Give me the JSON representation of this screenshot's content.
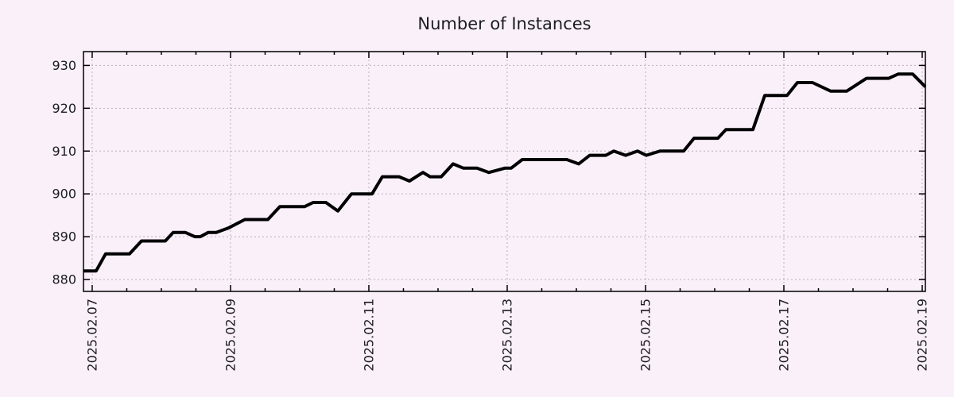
{
  "colors": {
    "background": "#faf0fa",
    "line": "#000000",
    "grid": "#b8b0bb",
    "text": "#1c1c24",
    "border": "#000000"
  },
  "chart_data": {
    "type": "line",
    "title": "Number of Instances",
    "xlabel": "",
    "ylabel": "",
    "grid": true,
    "legend": "none",
    "x_tick_labels": [
      "2025.02.07",
      "2025.02.09",
      "2025.02.11",
      "2025.02.13",
      "2025.02.15",
      "2025.02.17",
      "2025.02.19"
    ],
    "x_tick_days": [
      0,
      2,
      4,
      6,
      8,
      10,
      12
    ],
    "minor_tick_step_days": 0.5,
    "y_ticks": [
      880,
      890,
      900,
      910,
      920,
      930
    ],
    "xlim": [
      -0.126,
      12.046
    ],
    "ylim": [
      877.22,
      933.23
    ],
    "series": [
      {
        "name": "instances",
        "color": "#000000",
        "line_width": 4,
        "points": [
          [
            -0.126,
            882
          ],
          [
            0.057,
            882
          ],
          [
            0.195,
            886
          ],
          [
            0.54,
            886
          ],
          [
            0.713,
            889
          ],
          [
            1.057,
            889
          ],
          [
            1.172,
            891
          ],
          [
            1.345,
            891
          ],
          [
            1.483,
            890
          ],
          [
            1.563,
            890
          ],
          [
            1.678,
            891
          ],
          [
            1.793,
            891
          ],
          [
            1.966,
            892
          ],
          [
            2.207,
            894
          ],
          [
            2.54,
            894
          ],
          [
            2.713,
            897
          ],
          [
            3.069,
            897
          ],
          [
            3.195,
            898
          ],
          [
            3.379,
            898
          ],
          [
            3.552,
            896
          ],
          [
            3.747,
            900
          ],
          [
            4.046,
            900
          ],
          [
            4.195,
            904
          ],
          [
            4.437,
            904
          ],
          [
            4.586,
            903
          ],
          [
            4.782,
            905
          ],
          [
            4.885,
            904
          ],
          [
            5.046,
            904
          ],
          [
            5.218,
            907
          ],
          [
            5.368,
            906
          ],
          [
            5.563,
            906
          ],
          [
            5.736,
            905
          ],
          [
            5.966,
            906
          ],
          [
            6.057,
            906
          ],
          [
            6.218,
            908
          ],
          [
            6.862,
            908
          ],
          [
            7.034,
            907
          ],
          [
            7.195,
            909
          ],
          [
            7.425,
            909
          ],
          [
            7.54,
            910
          ],
          [
            7.713,
            909
          ],
          [
            7.885,
            910
          ],
          [
            8.011,
            909
          ],
          [
            8.207,
            910
          ],
          [
            8.552,
            910
          ],
          [
            8.701,
            913
          ],
          [
            9.046,
            913
          ],
          [
            9.161,
            915
          ],
          [
            9.552,
            915
          ],
          [
            9.724,
            923
          ],
          [
            10.046,
            923
          ],
          [
            10.195,
            926
          ],
          [
            10.414,
            926
          ],
          [
            10.678,
            924
          ],
          [
            10.908,
            924
          ],
          [
            11.195,
            927
          ],
          [
            11.517,
            927
          ],
          [
            11.655,
            928
          ],
          [
            11.862,
            928
          ],
          [
            12.046,
            925
          ]
        ]
      }
    ]
  }
}
